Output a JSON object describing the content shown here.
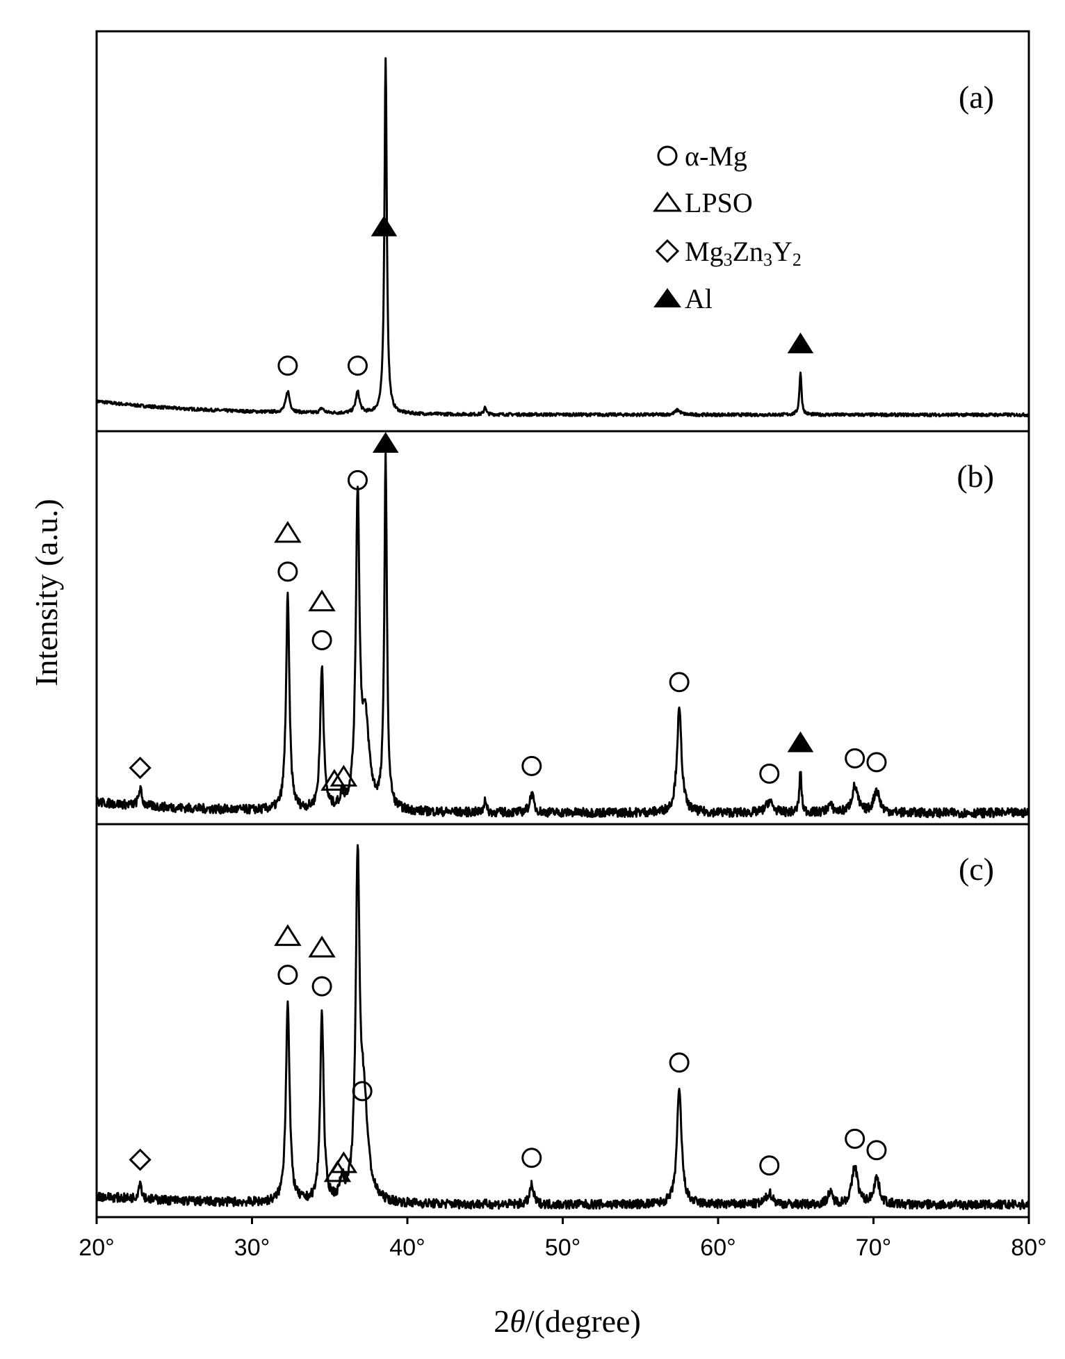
{
  "chart_data": [
    {
      "type": "line",
      "panel": "(a)",
      "peaks": [
        {
          "x": 32.3,
          "h": 0.055,
          "w": 0.15
        },
        {
          "x": 34.5,
          "h": 0.012,
          "w": 0.15
        },
        {
          "x": 36.8,
          "h": 0.055,
          "w": 0.15
        },
        {
          "x": 38.6,
          "h": 0.92,
          "w": 0.09
        },
        {
          "x": 45.0,
          "h": 0.022,
          "w": 0.07
        },
        {
          "x": 57.4,
          "h": 0.012,
          "w": 0.2
        },
        {
          "x": 65.3,
          "h": 0.11,
          "w": 0.08
        }
      ],
      "markers": [
        {
          "x": 32.3,
          "shape": "circle",
          "row": 0
        },
        {
          "x": 36.8,
          "shape": "circle",
          "row": 0
        },
        {
          "x": 38.5,
          "shape": "filled-triangle",
          "row": 0
        },
        {
          "x": 65.3,
          "shape": "filled-triangle",
          "row": 0
        }
      ]
    },
    {
      "type": "line",
      "panel": "(b)",
      "peaks": [
        {
          "x": 22.8,
          "h": 0.045,
          "w": 0.12
        },
        {
          "x": 32.3,
          "h": 0.56,
          "w": 0.13
        },
        {
          "x": 34.5,
          "h": 0.38,
          "w": 0.13
        },
        {
          "x": 35.8,
          "h": 0.03,
          "w": 0.15
        },
        {
          "x": 36.8,
          "h": 0.8,
          "w": 0.14
        },
        {
          "x": 37.3,
          "h": 0.22,
          "w": 0.3
        },
        {
          "x": 38.6,
          "h": 0.92,
          "w": 0.1
        },
        {
          "x": 45.0,
          "h": 0.04,
          "w": 0.07
        },
        {
          "x": 48.0,
          "h": 0.05,
          "w": 0.15
        },
        {
          "x": 57.5,
          "h": 0.27,
          "w": 0.18
        },
        {
          "x": 63.3,
          "h": 0.03,
          "w": 0.25
        },
        {
          "x": 65.3,
          "h": 0.11,
          "w": 0.08
        },
        {
          "x": 67.2,
          "h": 0.02,
          "w": 0.2
        },
        {
          "x": 68.8,
          "h": 0.07,
          "w": 0.22
        },
        {
          "x": 70.2,
          "h": 0.06,
          "w": 0.22
        }
      ],
      "markers": [
        {
          "x": 22.8,
          "shape": "diamond",
          "row": 0
        },
        {
          "x": 32.3,
          "shape": "circle",
          "row": 0
        },
        {
          "x": 32.3,
          "shape": "triangle",
          "row": 1
        },
        {
          "x": 34.5,
          "shape": "circle",
          "row": 0
        },
        {
          "x": 34.5,
          "shape": "triangle",
          "row": 1
        },
        {
          "x": 35.9,
          "shape": "triangle",
          "row": 0
        },
        {
          "x": 35.3,
          "shape": "triangle",
          "row": 0
        },
        {
          "x": 36.8,
          "shape": "circle",
          "row": 0
        },
        {
          "x": 38.6,
          "shape": "filled-triangle",
          "row": 0
        },
        {
          "x": 48.0,
          "shape": "circle",
          "row": 0
        },
        {
          "x": 57.5,
          "shape": "circle",
          "row": 0
        },
        {
          "x": 63.3,
          "shape": "circle",
          "row": 0
        },
        {
          "x": 65.3,
          "shape": "filled-triangle",
          "row": 0
        },
        {
          "x": 68.8,
          "shape": "circle",
          "row": 0
        },
        {
          "x": 70.2,
          "shape": "circle",
          "row": 0
        }
      ]
    },
    {
      "type": "line",
      "panel": "(c)",
      "peaks": [
        {
          "x": 22.8,
          "h": 0.045,
          "w": 0.12
        },
        {
          "x": 32.3,
          "h": 0.53,
          "w": 0.14
        },
        {
          "x": 34.5,
          "h": 0.5,
          "w": 0.13
        },
        {
          "x": 35.8,
          "h": 0.05,
          "w": 0.15
        },
        {
          "x": 36.8,
          "h": 0.85,
          "w": 0.15
        },
        {
          "x": 37.2,
          "h": 0.25,
          "w": 0.3
        },
        {
          "x": 48.0,
          "h": 0.05,
          "w": 0.15
        },
        {
          "x": 57.5,
          "h": 0.3,
          "w": 0.18
        },
        {
          "x": 63.3,
          "h": 0.03,
          "w": 0.25
        },
        {
          "x": 67.2,
          "h": 0.03,
          "w": 0.2
        },
        {
          "x": 68.8,
          "h": 0.1,
          "w": 0.22
        },
        {
          "x": 70.2,
          "h": 0.07,
          "w": 0.22
        }
      ],
      "markers": [
        {
          "x": 22.8,
          "shape": "diamond",
          "row": 0
        },
        {
          "x": 32.3,
          "shape": "circle",
          "row": 0
        },
        {
          "x": 32.3,
          "shape": "triangle",
          "row": 1
        },
        {
          "x": 34.5,
          "shape": "circle",
          "row": 0
        },
        {
          "x": 34.5,
          "shape": "triangle",
          "row": 1
        },
        {
          "x": 35.9,
          "shape": "triangle",
          "row": 0
        },
        {
          "x": 35.5,
          "shape": "triangle",
          "row": 0
        },
        {
          "x": 37.1,
          "shape": "circle",
          "row": 0
        },
        {
          "x": 48.0,
          "shape": "circle",
          "row": 0
        },
        {
          "x": 57.5,
          "shape": "circle",
          "row": 0
        },
        {
          "x": 63.3,
          "shape": "circle",
          "row": 0
        },
        {
          "x": 68.8,
          "shape": "circle",
          "row": 0
        },
        {
          "x": 70.2,
          "shape": "circle",
          "row": 0
        }
      ]
    }
  ],
  "axes": {
    "xlabel_prefix": "2",
    "xlabel_theta": "θ",
    "xlabel_suffix": "/(degree)",
    "ylabel": "Intensity (a.u.)",
    "xlim": [
      20,
      80
    ],
    "xticks": [
      "20°",
      "30°",
      "40°",
      "50°",
      "60°",
      "70°",
      "80°"
    ]
  },
  "legend": {
    "items": [
      {
        "shape": "circle",
        "label": "α-Mg"
      },
      {
        "shape": "triangle",
        "label": "LPSO"
      },
      {
        "shape": "diamond",
        "label_parts": [
          "Mg",
          "3",
          "Zn",
          "3",
          "Y",
          "2"
        ]
      },
      {
        "shape": "filled-triangle",
        "label": "Al"
      }
    ]
  },
  "colors": {
    "line": "#000000",
    "background": "#ffffff"
  }
}
